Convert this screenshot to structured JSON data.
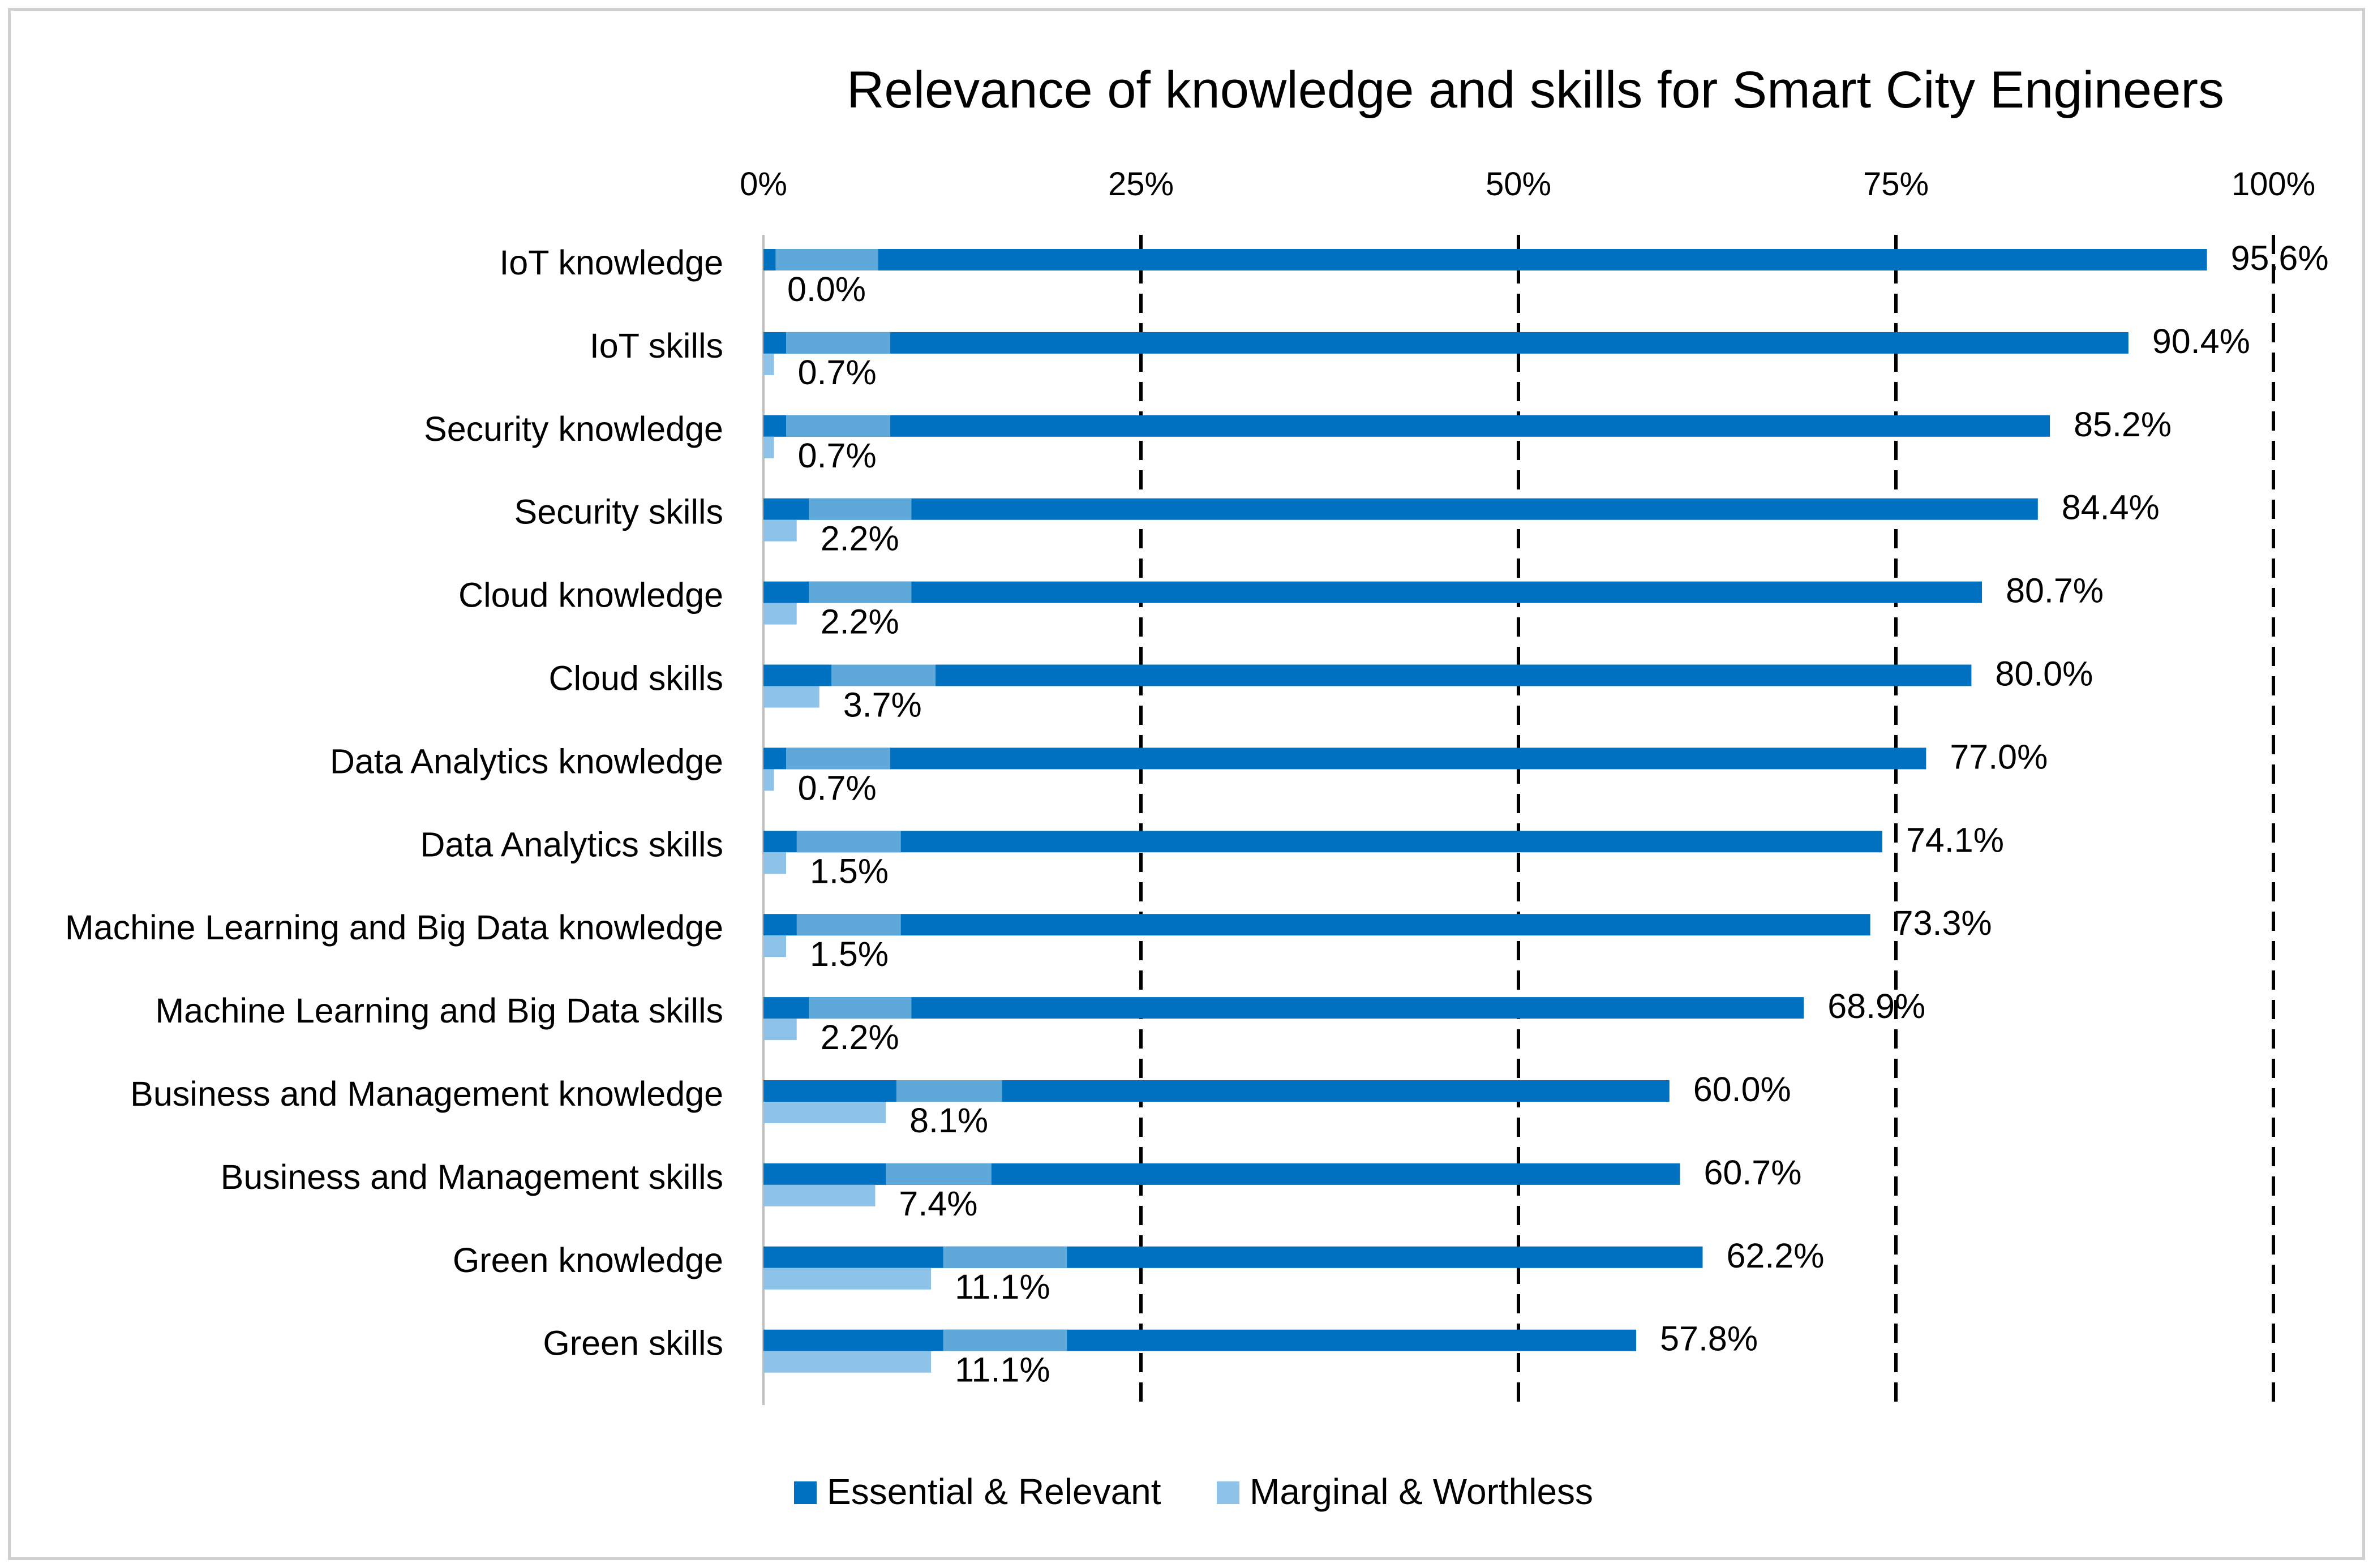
{
  "chart_data": {
    "type": "bar",
    "orientation": "horizontal",
    "title": "Relevance of knowledge and skills for Smart City Engineers",
    "xlim": [
      0,
      100
    ],
    "x_ticks": [
      "0%",
      "25%",
      "50%",
      "75%",
      "100%"
    ],
    "x_tick_values": [
      0,
      25,
      50,
      75,
      100
    ],
    "grid": "dashed vertical at 25%, 50%, 75%, 100%",
    "legend_position": "bottom",
    "categories": [
      "IoT knowledge",
      "IoT skills",
      "Security knowledge",
      "Security skills",
      "Cloud knowledge",
      "Cloud skills",
      "Data Analytics knowledge",
      "Data Analytics skills",
      "Machine Learning and Big Data knowledge",
      "Machine Learning and Big Data skills",
      "Business and Management knowledge",
      "Business and Management skills",
      "Green knowledge",
      "Green skills"
    ],
    "series": [
      {
        "name": "Essential & Relevant",
        "color": "#0070C0",
        "values": [
          95.6,
          90.4,
          85.2,
          84.4,
          80.7,
          80.0,
          77.0,
          74.1,
          73.3,
          68.9,
          60.0,
          60.7,
          62.2,
          57.8
        ],
        "labels": [
          "95.6%",
          "90.4%",
          "85.2%",
          "84.4%",
          "80.7%",
          "80.0%",
          "77.0%",
          "74.1%",
          "73.3%",
          "68.9%",
          "60.0%",
          "60.7%",
          "62.2%",
          "57.8%"
        ]
      },
      {
        "name": "Marginal & Worthless",
        "color": "#8DC3E8",
        "values": [
          0.0,
          0.7,
          0.7,
          2.2,
          2.2,
          3.7,
          0.7,
          1.5,
          1.5,
          2.2,
          8.1,
          7.4,
          11.1,
          11.1
        ],
        "labels": [
          "0.0%",
          "0.7%",
          "0.7%",
          "2.2%",
          "2.2%",
          "3.7%",
          "0.7%",
          "1.5%",
          "1.5%",
          "2.2%",
          "8.1%",
          "7.4%",
          "11.1%",
          "11.1%"
        ]
      }
    ],
    "overlay_band_color": "#5FA8DA",
    "overlay_band_start_values": [
      0.8,
      1.5,
      1.5,
      3.0,
      3.0,
      4.5,
      1.5,
      2.2,
      2.2,
      3.0,
      8.8,
      8.1,
      11.9,
      11.9
    ],
    "overlay_band_end_values": [
      7.6,
      8.4,
      8.4,
      9.8,
      9.8,
      11.4,
      8.4,
      9.1,
      9.1,
      9.8,
      15.8,
      15.1,
      20.1,
      20.1
    ]
  }
}
